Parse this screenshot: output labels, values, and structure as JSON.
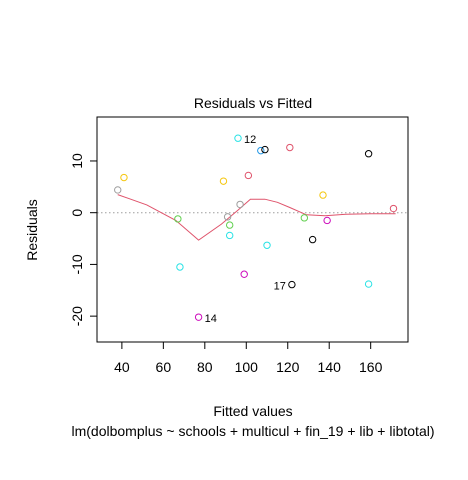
{
  "chart_data": {
    "type": "scatter",
    "title": "Residuals vs Fitted",
    "xlabel": "Fitted values",
    "subtitle": "lm(dolbomplus ~ schools + multicul + fin_19 + lib + libtotal)",
    "ylabel": "Residuals",
    "xlim": [
      28,
      178
    ],
    "ylim": [
      -25,
      18.5
    ],
    "xticks": [
      40,
      60,
      80,
      100,
      120,
      140,
      160
    ],
    "yticks": [
      -20,
      -10,
      0,
      10
    ],
    "reference_line": {
      "y": 0,
      "style": "dotted",
      "color": "#9e9e9e"
    },
    "smoother": {
      "color": "#df536b",
      "x": [
        38,
        52,
        66,
        77,
        88,
        96,
        102,
        109,
        115,
        121,
        129,
        138,
        148,
        160,
        172
      ],
      "y": [
        3.5,
        1.5,
        -1.5,
        -5.3,
        -2.2,
        0.5,
        2.6,
        2.6,
        2.0,
        1.0,
        -0.4,
        -0.6,
        -0.3,
        -0.2,
        -0.2
      ]
    },
    "points": [
      {
        "x": 38,
        "y": 4.4,
        "color": "#9e9e9e"
      },
      {
        "x": 41,
        "y": 6.8,
        "color": "#f5c710"
      },
      {
        "x": 67,
        "y": -1.2,
        "color": "#61d04f"
      },
      {
        "x": 68,
        "y": -10.5,
        "color": "#28e2e5"
      },
      {
        "x": 77,
        "y": -20.2,
        "color": "#cd0bbc"
      },
      {
        "x": 89,
        "y": 6.1,
        "color": "#f5c710"
      },
      {
        "x": 91,
        "y": -0.8,
        "color": "#9e9e9e"
      },
      {
        "x": 92,
        "y": -2.4,
        "color": "#61d04f"
      },
      {
        "x": 92,
        "y": -4.4,
        "color": "#28e2e5"
      },
      {
        "x": 96,
        "y": 14.4,
        "color": "#28e2e5"
      },
      {
        "x": 97,
        "y": 1.6,
        "color": "#9e9e9e"
      },
      {
        "x": 99,
        "y": -11.9,
        "color": "#cd0bbc"
      },
      {
        "x": 101,
        "y": 7.2,
        "color": "#df536b"
      },
      {
        "x": 107,
        "y": 12.0,
        "color": "#2297e6"
      },
      {
        "x": 109,
        "y": 12.2,
        "color": "#000000"
      },
      {
        "x": 110,
        "y": -6.3,
        "color": "#28e2e5"
      },
      {
        "x": 121,
        "y": 12.6,
        "color": "#df536b"
      },
      {
        "x": 122,
        "y": -13.9,
        "color": "#000000"
      },
      {
        "x": 128,
        "y": -1.0,
        "color": "#61d04f"
      },
      {
        "x": 132,
        "y": -5.2,
        "color": "#000000"
      },
      {
        "x": 137,
        "y": 3.4,
        "color": "#f5c710"
      },
      {
        "x": 139,
        "y": -1.5,
        "color": "#cd0bbc"
      },
      {
        "x": 159,
        "y": 11.4,
        "color": "#000000"
      },
      {
        "x": 159,
        "y": -13.8,
        "color": "#28e2e5"
      },
      {
        "x": 171,
        "y": 0.8,
        "color": "#df536b"
      }
    ],
    "point_labels": [
      {
        "text": "12",
        "x": 96,
        "y": 14.4,
        "side": "right"
      },
      {
        "text": "14",
        "x": 77,
        "y": -20.2,
        "side": "right"
      },
      {
        "text": "17",
        "x": 122,
        "y": -13.9,
        "side": "left"
      }
    ]
  }
}
